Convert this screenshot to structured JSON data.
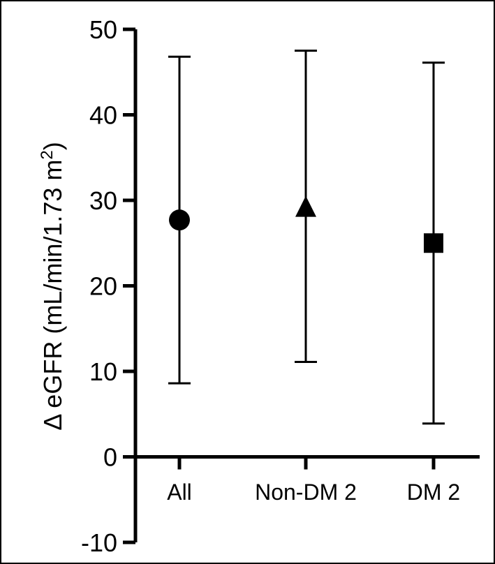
{
  "chart_data": {
    "type": "scatter",
    "categories": [
      "All",
      "Non-DM 2",
      "DM 2"
    ],
    "ylabel_main": "Δ eGFR (mL/min/1.73 m",
    "ylabel_sup": "2",
    "ylabel_end": ")",
    "ylim": [
      -10,
      50
    ],
    "yticks": [
      -10,
      0,
      10,
      20,
      30,
      40,
      50
    ],
    "grid": false,
    "series": [
      {
        "marker": "circle",
        "values": [
          27.7,
          null,
          null
        ],
        "lower": [
          8.6,
          null,
          null
        ],
        "upper": [
          46.8,
          null,
          null
        ]
      },
      {
        "marker": "triangle",
        "values": [
          null,
          29.0,
          null
        ],
        "lower": [
          null,
          11.1,
          null
        ],
        "upper": [
          null,
          47.5,
          null
        ]
      },
      {
        "marker": "square",
        "values": [
          null,
          null,
          25.0
        ],
        "lower": [
          null,
          null,
          3.9
        ],
        "upper": [
          null,
          null,
          46.1
        ]
      }
    ],
    "colors": {
      "marker": "#000000",
      "axis": "#000000"
    }
  }
}
